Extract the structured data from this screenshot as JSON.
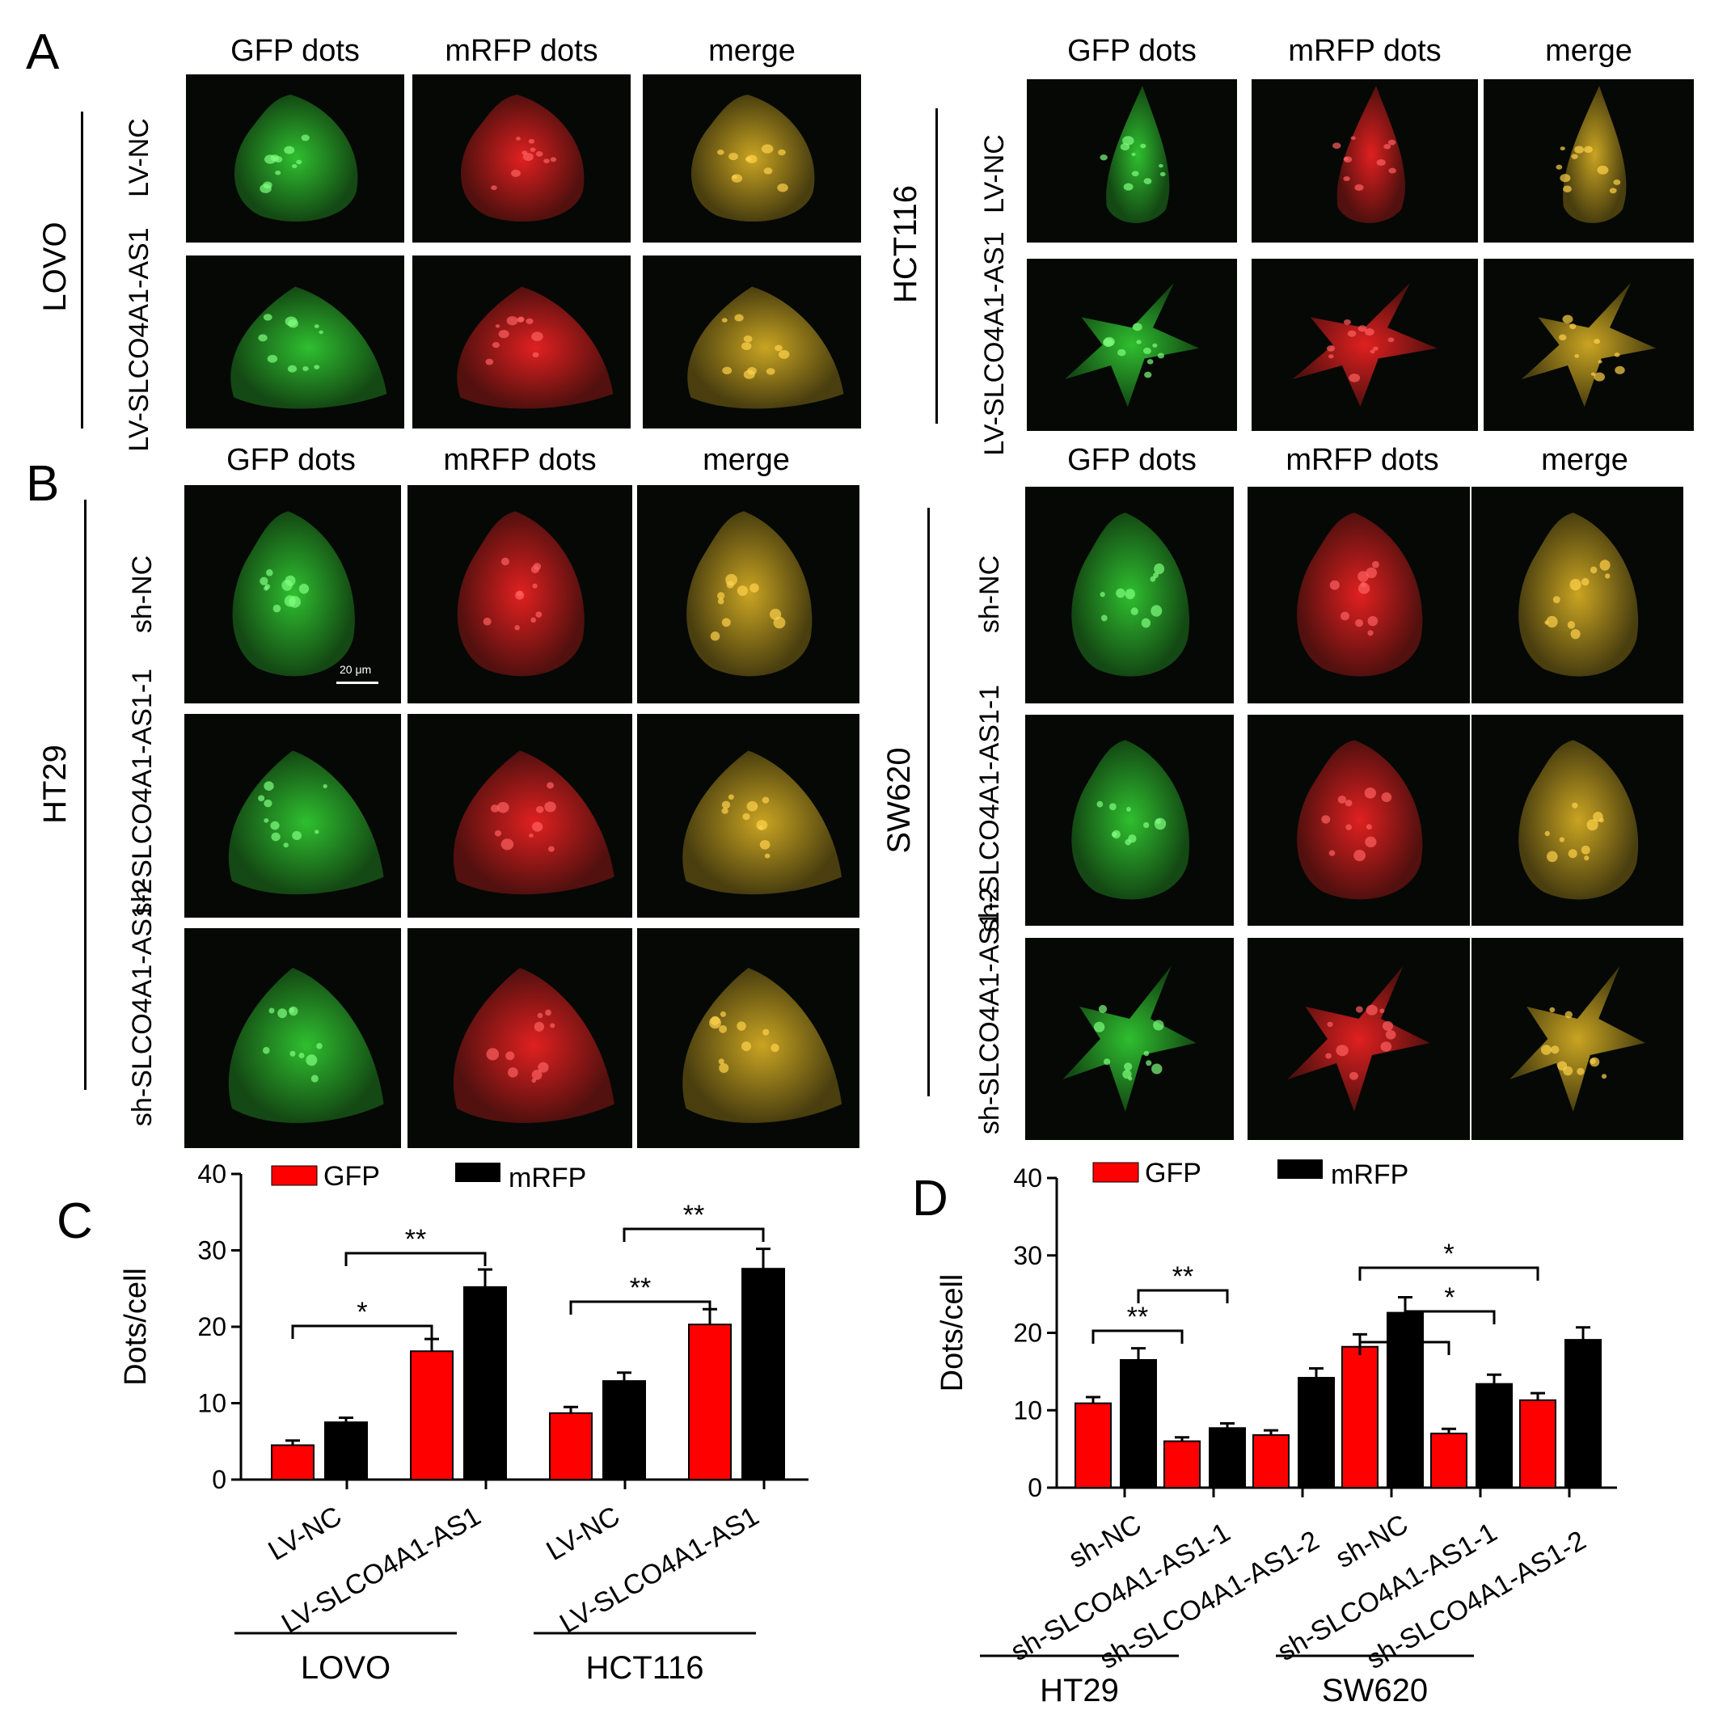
{
  "panels": {
    "A": {
      "letter": "A",
      "columns": [
        "GFP dots",
        "mRFP dots",
        "merge"
      ],
      "groups": [
        {
          "cell_line": "LOVO",
          "rows": [
            "LV-NC",
            "LV-SLCO4A1-AS1"
          ]
        },
        {
          "cell_line": "HCT116",
          "rows": [
            "LV-NC",
            "LV-SLCO4A1-AS1"
          ]
        }
      ]
    },
    "B": {
      "letter": "B",
      "columns": [
        "GFP dots",
        "mRFP dots",
        "merge"
      ],
      "scale_bar": "20 μm",
      "groups": [
        {
          "cell_line": "HT29",
          "rows": [
            "sh-NC",
            "sh-SLCO4A1-AS1-1",
            "sh-SLCO4A1-AS1-2"
          ]
        },
        {
          "cell_line": "SW620",
          "rows": [
            "sh-NC",
            "sh-SLCO4A1-AS1-1",
            "sh-SLCO4A1-AS1-2"
          ]
        }
      ]
    },
    "C": {
      "letter": "C"
    },
    "D": {
      "letter": "D"
    }
  },
  "colors": {
    "gfp": "#ff0000",
    "mrfp": "#000000"
  },
  "chart_data": [
    {
      "type": "bar",
      "panel": "C",
      "ylabel": "Dots/cell",
      "ylim": [
        0,
        40
      ],
      "yticks": [
        0,
        10,
        20,
        30,
        40
      ],
      "categories": [
        "LV-NC",
        "LV-SLCO4A1-AS1",
        "LV-NC",
        "LV-SLCO4A1-AS1"
      ],
      "groups": [
        {
          "name": "LOVO",
          "categories": [
            0,
            1
          ]
        },
        {
          "name": "HCT116",
          "categories": [
            2,
            3
          ]
        }
      ],
      "legend": "top",
      "series": [
        {
          "name": "GFP",
          "values": [
            4.5,
            16.8,
            8.7,
            20.3
          ],
          "errors": [
            0.6,
            1.6,
            0.8,
            2.0
          ]
        },
        {
          "name": "mRFP",
          "values": [
            7.5,
            25.2,
            12.9,
            27.6
          ],
          "errors": [
            0.6,
            2.3,
            1.1,
            2.6
          ]
        }
      ],
      "annotations": [
        {
          "text": "*",
          "from": [
            0,
            0
          ],
          "to": [
            1,
            0
          ]
        },
        {
          "text": "**",
          "from": [
            0,
            1
          ],
          "to": [
            1,
            1
          ]
        },
        {
          "text": "**",
          "from": [
            2,
            0
          ],
          "to": [
            3,
            0
          ]
        },
        {
          "text": "**",
          "from": [
            2,
            1
          ],
          "to": [
            3,
            1
          ]
        }
      ]
    },
    {
      "type": "bar",
      "panel": "D",
      "ylabel": "Dots/cell",
      "ylim": [
        0,
        40
      ],
      "yticks": [
        0,
        10,
        20,
        30,
        40
      ],
      "categories": [
        "sh-NC",
        "sh-SLCO4A1-AS1-1",
        "sh-SLCO4A1-AS1-2",
        "sh-NC",
        "sh-SLCO4A1-AS1-1",
        "sh-SLCO4A1-AS1-2"
      ],
      "groups": [
        {
          "name": "HT29",
          "categories": [
            0,
            1,
            2
          ]
        },
        {
          "name": "SW620",
          "categories": [
            3,
            4,
            5
          ]
        }
      ],
      "legend": "top",
      "series": [
        {
          "name": "GFP",
          "values": [
            10.9,
            6.0,
            6.8,
            18.2,
            7.0,
            11.3
          ],
          "errors": [
            0.8,
            0.5,
            0.6,
            1.6,
            0.6,
            0.9
          ]
        },
        {
          "name": "mRFP",
          "values": [
            16.5,
            7.7,
            14.2,
            22.6,
            13.4,
            19.1
          ],
          "errors": [
            1.5,
            0.6,
            1.2,
            2.0,
            1.2,
            1.6
          ]
        }
      ],
      "annotations": [
        {
          "text": "**",
          "from": [
            0,
            0
          ],
          "to": [
            1,
            0
          ]
        },
        {
          "text": "**",
          "from": [
            0,
            1
          ],
          "to": [
            1,
            1
          ]
        },
        {
          "text": "*",
          "from": [
            3,
            0
          ],
          "to": [
            4,
            0
          ]
        },
        {
          "text": "*",
          "from": [
            3,
            1
          ],
          "to": [
            4,
            1
          ]
        },
        {
          "text": "*",
          "from": [
            3,
            0
          ],
          "to": [
            5,
            0
          ]
        }
      ]
    }
  ]
}
